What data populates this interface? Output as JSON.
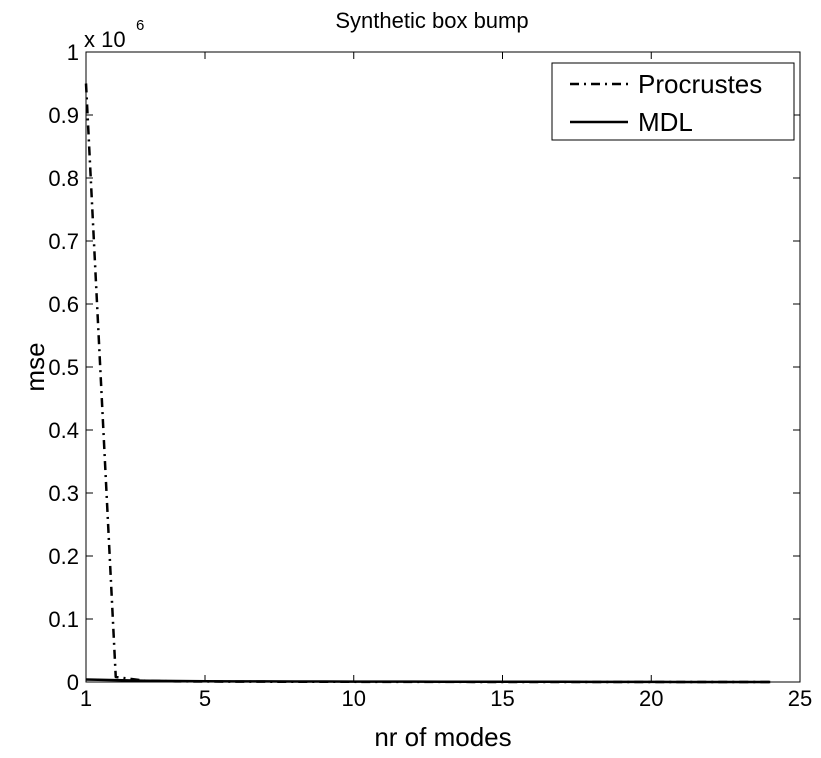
{
  "chart_data": {
    "type": "line",
    "title": "Synthetic box bump",
    "xlabel": "nr of modes",
    "ylabel": "mse",
    "y_exponent_label": "x 10",
    "y_exponent_power": "6",
    "xlim": [
      1,
      25
    ],
    "ylim": [
      0,
      1
    ],
    "y_scale_factor": 1000000,
    "x_ticks": [
      1,
      5,
      10,
      15,
      20,
      25
    ],
    "x_tick_labels": [
      "1",
      "5",
      "10",
      "15",
      "20",
      "25"
    ],
    "y_ticks": [
      0,
      0.1,
      0.2,
      0.3,
      0.4,
      0.5,
      0.6,
      0.7,
      0.8,
      0.9,
      1
    ],
    "y_tick_labels": [
      "0",
      "0.1",
      "0.2",
      "0.3",
      "0.4",
      "0.5",
      "0.6",
      "0.7",
      "0.8",
      "0.9",
      "1"
    ],
    "grid": false,
    "legend_position": "top-right",
    "series": [
      {
        "name": "Procrustes",
        "line_style": "dash-dot",
        "color": "#000000",
        "x": [
          1,
          2,
          3,
          4,
          5,
          6,
          7,
          8,
          9,
          10,
          11,
          12,
          13,
          14,
          15,
          16,
          17,
          18,
          19,
          20,
          21,
          22,
          23,
          24
        ],
        "y": [
          0.95,
          0.008,
          0.002,
          0.001,
          0.0008,
          0.0006,
          0.0005,
          0.0004,
          0.0003,
          0.0003,
          0.0002,
          0.0002,
          0.0002,
          0.0001,
          0.0001,
          0.0001,
          0.0001,
          0.0001,
          0.0001,
          0.0001,
          5e-05,
          5e-05,
          3e-05,
          2e-05
        ]
      },
      {
        "name": "MDL",
        "line_style": "solid",
        "color": "#000000",
        "x": [
          1,
          2,
          3,
          4,
          5,
          6,
          7,
          8,
          9,
          10,
          11,
          12,
          13,
          14,
          15,
          16,
          17,
          18,
          19,
          20,
          21,
          22,
          23,
          24
        ],
        "y": [
          0.004,
          0.003,
          0.002,
          0.0015,
          0.0012,
          0.001,
          0.0009,
          0.0008,
          0.0007,
          0.0006,
          0.0005,
          0.0005,
          0.0004,
          0.0004,
          0.0003,
          0.0003,
          0.0003,
          0.0002,
          0.0002,
          0.0002,
          0.0001,
          0.0001,
          0.0001,
          5e-05
        ]
      }
    ]
  }
}
